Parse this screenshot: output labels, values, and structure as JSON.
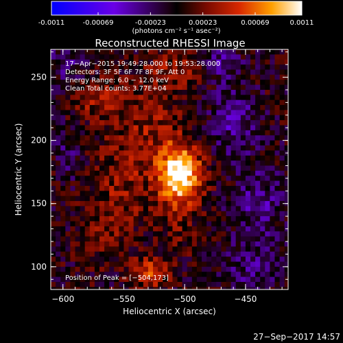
{
  "chart_data": {
    "type": "heatmap",
    "title": "Reconstructed RHESSI Image",
    "colorbar": {
      "ticks": [
        "-0.0011",
        "-0.00069",
        "-0.00023",
        "0.00023",
        "0.00069",
        "0.0011"
      ],
      "unit_label": "(photons cm⁻² s⁻¹ asec⁻²)",
      "range": [
        -0.0011,
        0.0011
      ]
    },
    "xlabel": "Heliocentric X (arcsec)",
    "ylabel": "Heliocentric Y (arcsec)",
    "x_ticks": [
      "−600",
      "−550",
      "−500",
      "−450"
    ],
    "y_ticks": [
      "100",
      "150",
      "200",
      "250"
    ],
    "xlim": [
      -610,
      -415
    ],
    "ylim": [
      82,
      272
    ],
    "annotations": [
      "17−Apr−2015 19:49:28.000 to 19:53:28.000",
      "Detectors: 3F 5F 6F 7F 8F 9F, Att 0",
      "Energy Range: 6.0 − 12.0 keV",
      "Clean     Total counts: 3.77E+04"
    ],
    "peak_label": "Position of Peak = [−504,173]",
    "peak": [
      -504,
      173
    ],
    "sources": [
      {
        "x": -504,
        "y": 173,
        "sx": 12,
        "sy": 16,
        "amp": 0.00115
      },
      {
        "x": -528,
        "y": 96,
        "sx": 10,
        "sy": 8,
        "amp": 0.0006
      },
      {
        "x": -533,
        "y": 205,
        "sx": 22,
        "sy": 28,
        "amp": 0.00032
      },
      {
        "x": -572,
        "y": 232,
        "sx": 14,
        "sy": 12,
        "amp": 0.00028
      },
      {
        "x": -508,
        "y": 255,
        "sx": 14,
        "sy": 11,
        "amp": 0.0003
      },
      {
        "x": -555,
        "y": 155,
        "sx": 18,
        "sy": 22,
        "amp": 0.00025
      },
      {
        "x": -565,
        "y": 120,
        "sx": 10,
        "sy": 12,
        "amp": 0.00018
      },
      {
        "x": -505,
        "y": 130,
        "sx": 10,
        "sy": 14,
        "amp": 0.0002
      },
      {
        "x": -460,
        "y": 215,
        "sx": 14,
        "sy": 18,
        "amp": -0.00035
      },
      {
        "x": -440,
        "y": 150,
        "sx": 14,
        "sy": 20,
        "amp": -0.00032
      },
      {
        "x": -445,
        "y": 100,
        "sx": 14,
        "sy": 14,
        "amp": -0.0003
      },
      {
        "x": -598,
        "y": 260,
        "sx": 10,
        "sy": 10,
        "amp": -0.00025
      },
      {
        "x": -470,
        "y": 262,
        "sx": 12,
        "sy": 10,
        "amp": -0.0003
      },
      {
        "x": -595,
        "y": 190,
        "sx": 8,
        "sy": 16,
        "amp": -0.0002
      }
    ]
  },
  "footer": {
    "date": "27−Sep−2017 14:57"
  }
}
